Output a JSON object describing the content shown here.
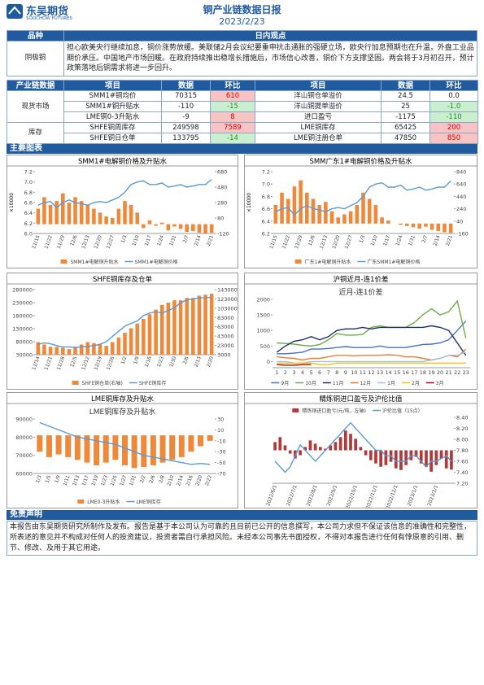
{
  "header": {
    "brand": "东吴期货",
    "brand_en": "SOOCHOW FUTURES",
    "title": "铜产业链数据日报",
    "date": "2023/2/23"
  },
  "view": {
    "col1": "品种",
    "col2": "日内观点",
    "variety": "阴极铜",
    "text": "担心欧美央行继续加息，铜价涨势放缓。美联储2月会议纪要重申抗击通胀的强硬立场，欧央行加息预期也在升温，外盘工业品期价承压。中国地产市场回暖。在政府持续推出稳增长措施后，市场信心改善，铜价下方支撑坚固。两会将于3月初召开，预计政策落地后铜需求将进一步回升。"
  },
  "table": {
    "header": [
      "产业链数据",
      "项目",
      "数据",
      "环比",
      "项目",
      "数据",
      "环比"
    ],
    "groups": [
      {
        "name": "现货市场",
        "rows": [
          [
            "SMM1#铜均价",
            "70315",
            "610",
            "洋山铜仓单溢价",
            "24.5",
            "0.0"
          ],
          [
            "SMM1#铜升贴水",
            "-110",
            "-15",
            "洋山铜提单溢价",
            "25",
            "-1.0"
          ],
          [
            "LME铜0-3升贴水",
            "-9",
            "8",
            "进口盈亏",
            "-1175",
            "-110"
          ]
        ]
      },
      {
        "name": "库存",
        "rows": [
          [
            "SHFE铜周库存",
            "249598",
            "7589",
            "LME铜库存",
            "65425",
            "200"
          ],
          [
            "SHFE铜日仓单",
            "133795",
            "-14",
            "LME铜注册仓单",
            "47850",
            "850"
          ]
        ]
      }
    ]
  },
  "section_charts": "主要图表",
  "chart_data": [
    {
      "type": "combo",
      "title": "SMM1#电解铜价格及升贴水",
      "ylabel": "×10000",
      "categories": [
        "11/15",
        null,
        "11/22",
        null,
        "11/29",
        null,
        "12/6",
        null,
        "12/13",
        null,
        "12/20",
        null,
        "12/27",
        null,
        "1/3",
        null,
        "1/10",
        null,
        "1/17",
        null,
        "1/24",
        null,
        "1/31",
        null,
        "2/7",
        null,
        "2/14",
        null,
        "2/21"
      ],
      "ylim": [
        6.0,
        7.2
      ],
      "yticks": [
        {
          "value": 6.0,
          "label": "6.0"
        },
        6.2,
        6.4,
        6.6,
        6.8,
        {
          "value": 7.0,
          "label": "7.0"
        },
        7.2
      ],
      "y2lim": [
        -120,
        680
      ],
      "y2ticks": [
        -120,
        80,
        280,
        480,
        680
      ],
      "legend": "bottom",
      "series": [
        {
          "name": "SMM1#电解铜升贴水",
          "kind": "bar",
          "axis": "y2",
          "color": "#f0883a",
          "values": [
            200,
            350,
            250,
            300,
            400,
            280,
            350,
            300,
            250,
            200,
            150,
            100,
            80,
            200,
            300,
            250,
            150,
            -50,
            50,
            -20,
            20,
            -80,
            -30,
            -60,
            -100,
            -90,
            -110,
            -120,
            -110
          ]
        },
        {
          "name": "SMM1#电解铜价格",
          "kind": "line",
          "color": "#5b9bd5",
          "values": [
            6.55,
            6.6,
            6.62,
            6.5,
            6.6,
            6.65,
            6.6,
            6.58,
            6.55,
            6.6,
            6.62,
            6.6,
            6.65,
            6.7,
            6.8,
            6.95,
            7.0,
            7.02,
            6.95,
            6.95,
            6.98,
            6.9,
            6.92,
            6.95,
            6.9,
            6.92,
            6.95,
            6.95,
            7.05
          ]
        }
      ]
    },
    {
      "type": "combo",
      "title": "SMM广东1#电解铜价格及升贴水",
      "ylabel": "×10000",
      "categories": [
        "11/15",
        null,
        "11/22",
        null,
        "11/29",
        null,
        "12/6",
        null,
        "12/13",
        null,
        "12/20",
        null,
        "12/27",
        null,
        "1/3",
        null,
        "1/10",
        null,
        "1/17",
        null,
        "1/24",
        null,
        "1/31",
        null,
        "2/7",
        null,
        "2/14",
        null,
        "2/21"
      ],
      "ylim": [
        6.2,
        7.2
      ],
      "yticks": [
        6.2,
        6.4,
        6.6,
        6.8,
        {
          "value": 7.0,
          "label": "7.0"
        },
        7.2
      ],
      "y2lim": [
        -160,
        840
      ],
      "y2ticks": [
        -160,
        40,
        240,
        440,
        640,
        840
      ],
      "legend": "bottom",
      "series": [
        {
          "name": "广东1#电解铜升贴水",
          "kind": "bar",
          "axis": "y2",
          "color": "#f0883a",
          "values": [
            300,
            500,
            400,
            600,
            700,
            500,
            400,
            300,
            350,
            200,
            100,
            150,
            200,
            300,
            500,
            400,
            300,
            100,
            50,
            0,
            -20,
            -40,
            -60,
            -80,
            -50,
            -100,
            -120,
            -140,
            -150
          ]
        },
        {
          "name": "广东SMM1#电解铜价格",
          "kind": "line",
          "color": "#5b9bd5",
          "values": [
            6.55,
            6.6,
            6.62,
            6.5,
            6.6,
            6.65,
            6.6,
            6.58,
            6.55,
            6.6,
            6.62,
            6.6,
            6.65,
            6.7,
            6.8,
            6.95,
            7.0,
            7.02,
            6.95,
            6.95,
            6.98,
            6.9,
            6.92,
            6.95,
            6.9,
            6.92,
            6.95,
            6.95,
            7.05
          ]
        }
      ]
    },
    {
      "type": "combo",
      "title": "SHFE铜库存及仓单",
      "categories": [
        "11/14",
        null,
        "11/21",
        null,
        "11/28",
        null,
        "12/5",
        null,
        "12/12",
        null,
        "12/19",
        null,
        "12/26",
        null,
        "1/2",
        null,
        "1/9",
        null,
        "1/16",
        null,
        "1/23",
        null,
        "1/30",
        null,
        "2/6",
        null,
        "2/13",
        null,
        "2/20"
      ],
      "ylim": [
        30000,
        280000
      ],
      "yticks": [
        30000,
        80000,
        130000,
        180000,
        230000,
        280000
      ],
      "y2lim": [
        3000,
        143000
      ],
      "y2ticks": [
        3000,
        23000,
        43000,
        63000,
        83000,
        103000,
        123000,
        143000
      ],
      "legend": "bottom",
      "series": [
        {
          "name": "SHFE铜仓单(右轴)",
          "kind": "bar",
          "axis": "y2",
          "color": "#f0883a",
          "values": [
            30000,
            25000,
            20000,
            20000,
            18000,
            15000,
            20000,
            25000,
            30000,
            28000,
            25000,
            22000,
            30000,
            40000,
            50000,
            60000,
            70000,
            80000,
            90000,
            100000,
            110000,
            115000,
            120000,
            120000,
            125000,
            125000,
            130000,
            132000,
            134000
          ]
        },
        {
          "name": "SHFE铜库存",
          "kind": "line",
          "color": "#5b9bd5",
          "values": [
            70000,
            75000,
            72000,
            65000,
            60000,
            60000,
            58000,
            60000,
            62000,
            65000,
            70000,
            80000,
            100000,
            120000,
            140000,
            150000,
            160000,
            180000,
            190000,
            195000,
            190000,
            200000,
            210000,
            230000,
            240000,
            245000,
            248000,
            249000,
            250000
          ]
        }
      ]
    },
    {
      "type": "line",
      "title": "沪铜近月-连1价差",
      "subtitle": "近月-连1价差",
      "categories": [
        1,
        2,
        3,
        4,
        5,
        6,
        7,
        8,
        9,
        10,
        11,
        12,
        13,
        14,
        15,
        16,
        17,
        18,
        19,
        20,
        21,
        22,
        23
      ],
      "ylim": [
        -200,
        2000
      ],
      "yticks": [
        0,
        500,
        1000,
        1500,
        2000
      ],
      "legend": "bottom",
      "series": [
        {
          "name": "9月",
          "kind": "line",
          "color": "#4472c4",
          "values": [
            250,
            250,
            270,
            300,
            400,
            400,
            420,
            450,
            480,
            450,
            450,
            450,
            500,
            450,
            450,
            450,
            500,
            550,
            560,
            600,
            700,
            1000,
            1300
          ]
        },
        {
          "name": "10月",
          "kind": "line",
          "color": "#70ad47",
          "values": [
            600,
            580,
            560,
            520,
            500,
            550,
            700,
            900,
            850,
            850,
            870,
            1100,
            1150,
            1100,
            1100,
            1100,
            1250,
            1500,
            1700,
            1500,
            1600,
            1950,
            750
          ]
        },
        {
          "name": "11月",
          "kind": "line",
          "color": "#1f2d6b",
          "values": [
            300,
            500,
            650,
            700,
            800,
            700,
            800,
            1000,
            1050,
            1050,
            1100,
            1050,
            1100,
            1100,
            1100,
            1100,
            1100,
            1100,
            1150,
            1100,
            1000,
            600,
            200
          ]
        },
        {
          "name": "12月",
          "kind": "line",
          "color": "#ed7d31",
          "values": [
            150,
            120,
            100,
            50,
            100,
            100,
            150,
            200,
            200,
            180,
            200,
            200,
            200,
            220,
            200,
            150,
            150,
            100,
            50,
            100,
            200,
            150,
            400
          ]
        },
        {
          "name": "1月",
          "kind": "line",
          "color": "#9dc3e6",
          "values": [
            0,
            0,
            -50,
            -50,
            0,
            0,
            0,
            0,
            0,
            0,
            0,
            0,
            0,
            0,
            0,
            0,
            0,
            0,
            50,
            100,
            200,
            200,
            300
          ]
        },
        {
          "name": "2月",
          "kind": "line",
          "color": "#ffc000",
          "values": [
            -50,
            -50,
            -50,
            -50,
            -50,
            -100,
            -100,
            -50,
            -50,
            -50,
            -50,
            -50,
            -50,
            -50,
            -50,
            -50,
            -50,
            -50,
            -50,
            -50,
            -50,
            -50,
            -50
          ]
        },
        {
          "name": "3月",
          "kind": "line",
          "color": "#c00000",
          "values": [
            -100,
            -120,
            -120,
            -100,
            -100,
            null,
            null,
            null,
            null,
            null,
            null,
            null,
            null,
            null,
            null,
            null,
            null,
            null,
            null,
            null,
            null,
            null,
            null
          ]
        }
      ]
    },
    {
      "type": "combo",
      "title": "LME铜库存及升贴水",
      "subtitle": "LME铜库存及升贴水",
      "categories": [
        "1/3",
        "1/5",
        "1/9",
        "1/11",
        "1/13",
        "1/17",
        "1/19",
        "1/23",
        "1/25",
        "1/27",
        "1/31",
        "2/2",
        "2/6",
        "2/8",
        "2/10",
        "2/14",
        "2/16",
        "2/20",
        "2/22"
      ],
      "ylim": [
        60000,
        90000
      ],
      "yticks": [
        60000,
        70000,
        80000,
        90000
      ],
      "y2lim": [
        -70,
        30
      ],
      "y2ticks": [
        -70,
        -50,
        -30,
        -10,
        10,
        30
      ],
      "legend": "bottom",
      "series": [
        {
          "name": "LME0-3升贴水",
          "kind": "bar",
          "axis": "y2",
          "color": "#f0883a",
          "values": [
            -30,
            -40,
            -35,
            -40,
            -45,
            -50,
            -55,
            -50,
            -45,
            -55,
            -60,
            -58,
            -55,
            -50,
            -45,
            -40,
            -30,
            -20,
            -10
          ]
        },
        {
          "name": "LME铜库存",
          "kind": "line",
          "color": "#5b9bd5",
          "values": [
            88000,
            86000,
            84000,
            82000,
            80000,
            79000,
            78000,
            77000,
            76000,
            74000,
            72000,
            70000,
            69000,
            68000,
            67000,
            66000,
            65000,
            65500,
            65000
          ]
        }
      ]
    },
    {
      "type": "combo",
      "title": "精炼铜进口盈亏及沪伦比值",
      "categories": [
        "2022/6/1",
        null,
        null,
        null,
        "2022/7/1",
        null,
        null,
        null,
        "2022/8/1",
        null,
        null,
        null,
        "2022/9/1",
        null,
        null,
        null,
        "2022/10/1",
        null,
        null,
        null,
        "2022/11/1",
        null,
        null,
        null,
        "2022/12/1",
        null,
        null,
        null,
        "2023/1/1",
        null,
        null,
        null,
        "2023/2/1",
        null,
        null,
        null
      ],
      "ylim": [
        -2000,
        2000
      ],
      "y2lim": [
        7.2,
        8.4
      ],
      "y2ticks": [
        {
          "value": 7.2,
          "label": "7.20"
        },
        {
          "value": 7.4,
          "label": "7.40"
        },
        {
          "value": 7.6,
          "label": "7.60"
        },
        {
          "value": 7.8,
          "label": "7.80"
        },
        {
          "value": 8.0,
          "label": "8.00"
        },
        {
          "value": 8.2,
          "label": "8.20"
        },
        {
          "value": 8.4,
          "label": "8.40"
        }
      ],
      "legend": "top",
      "series": [
        {
          "name": "精炼铜进口盈亏(元/吨，左轴)",
          "kind": "bar",
          "color": "#b03a3a",
          "values": [
            500,
            800,
            300,
            -200,
            -500,
            -300,
            200,
            600,
            400,
            200,
            100,
            300,
            500,
            800,
            1200,
            1000,
            700,
            200,
            -300,
            -600,
            -800,
            -1000,
            -900,
            -700,
            -1100,
            -1200,
            -900,
            -600,
            -400,
            -800,
            -1000,
            -1300,
            -900,
            -500,
            -1100,
            -1175
          ]
        },
        {
          "name": "沪伦比值（15点）",
          "kind": "line",
          "axis": "y2",
          "color": "#5b9bd5",
          "values": [
            7.6,
            7.5,
            7.4,
            7.5,
            7.7,
            7.9,
            7.8,
            7.7,
            7.6,
            7.7,
            7.8,
            7.9,
            8.0,
            8.1,
            8.2,
            8.3,
            8.2,
            8.1,
            8.0,
            7.9,
            7.8,
            7.8,
            7.7,
            7.7,
            7.6,
            7.6,
            7.6,
            7.7,
            7.7,
            7.6,
            7.5,
            7.6,
            7.6,
            7.65,
            7.7,
            7.6
          ]
        }
      ]
    }
  ],
  "disclaimer": {
    "title": "免责声明",
    "text": "本报告由东吴期货研究所制作及发布。报告是基于本公司认为可靠的且目前已公开的信息撰写，本公司力求但不保证该信息的准确性和完整性，所表述的意见并不构成对任何人的投资建议，投资者需自行承担风险。未经本公司事先书面授权，不得对本报告进行任何有悖原意的引用、删节、修改、及用于其它用途。"
  }
}
